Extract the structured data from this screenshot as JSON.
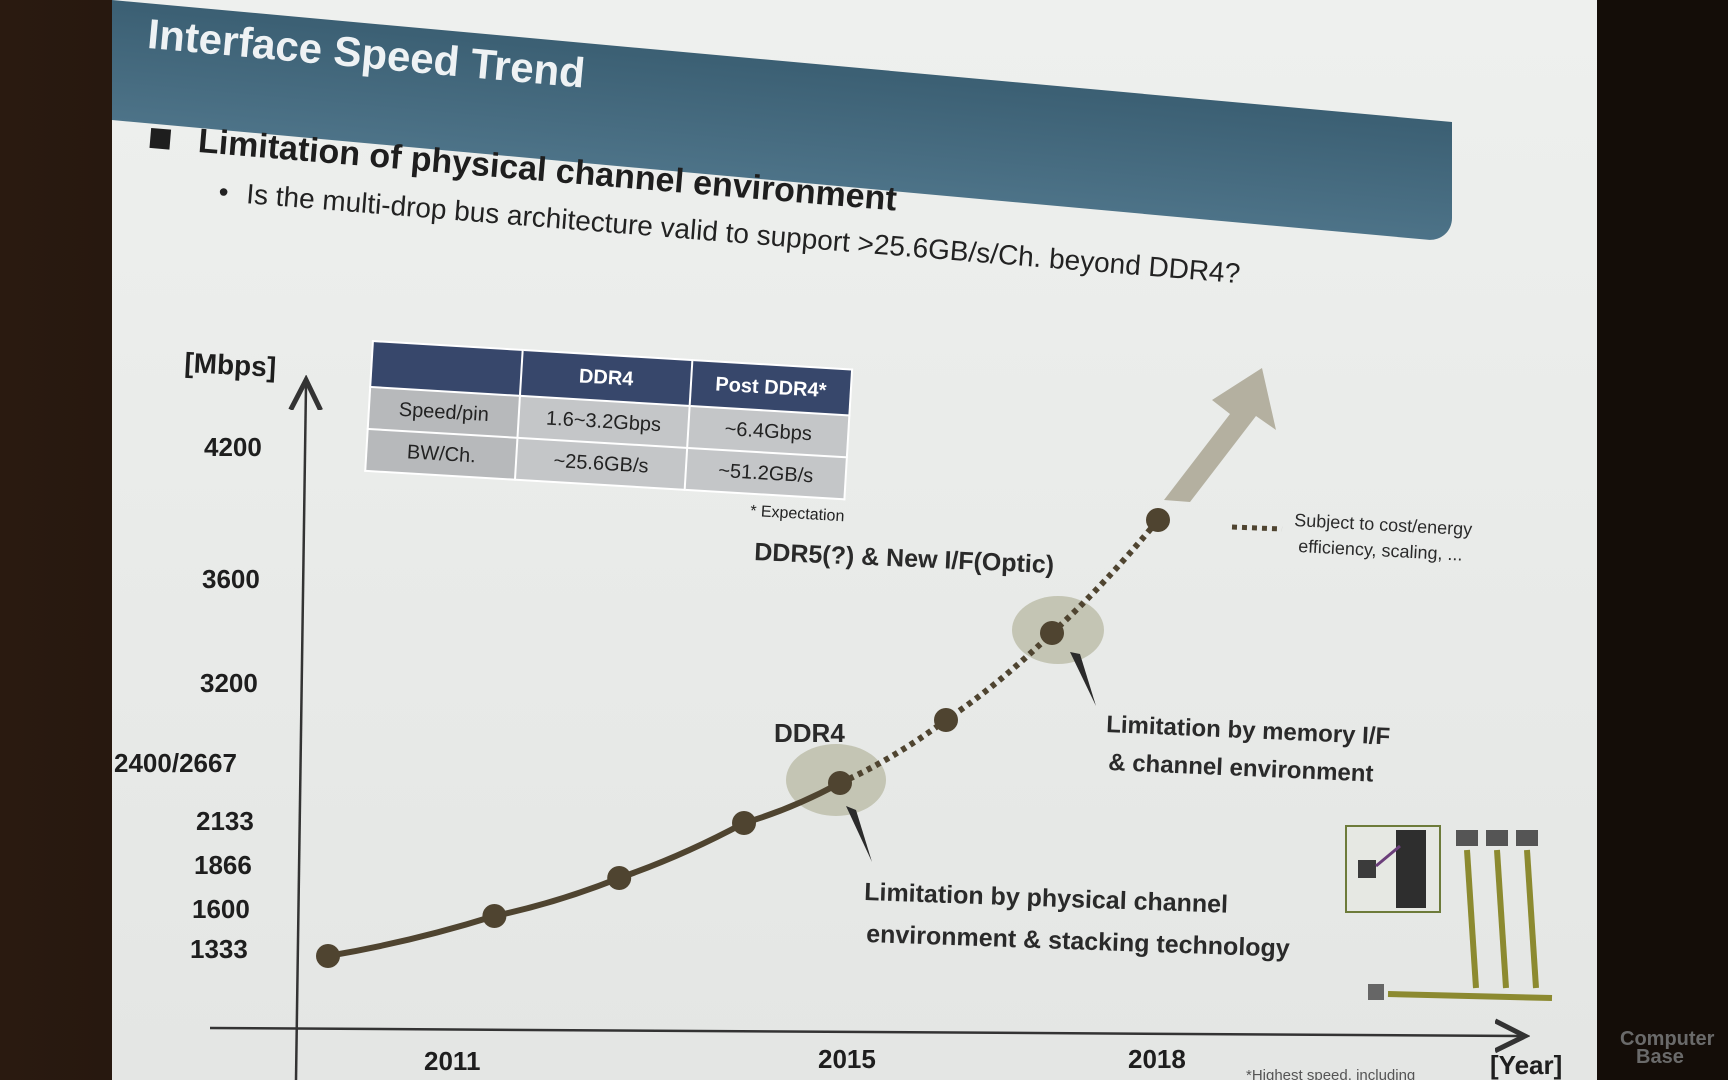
{
  "slide": {
    "title": "Interface Speed Trend",
    "bullet_heading": "Limitation of physical channel environment",
    "sub_bullet": "Is the multi-drop bus architecture valid to support >25.6GB/s/Ch. beyond DDR4?"
  },
  "spec_table": {
    "headers": [
      "",
      "DDR4",
      "Post DDR4*"
    ],
    "rows": [
      [
        "Speed/pin",
        "1.6~3.2Gbps",
        "~6.4Gbps"
      ],
      [
        "BW/Ch.",
        "~25.6GB/s",
        "~51.2GB/s"
      ]
    ],
    "footnote": "* Expectation"
  },
  "chart_data": {
    "type": "line",
    "xlabel": "[Year]",
    "ylabel": "[Mbps]",
    "x_tick_labels": [
      "2011",
      "2015",
      "2018"
    ],
    "y_tick_labels": [
      "4200",
      "3600",
      "3200",
      "2400/2667",
      "2133",
      "1866",
      "1600",
      "1333"
    ],
    "series": [
      {
        "style": "solid",
        "points": [
          [
            2010,
            1333
          ],
          [
            2011.4,
            1600
          ],
          [
            2012.7,
            1866
          ],
          [
            2014,
            2133
          ],
          [
            2015,
            2400
          ]
        ]
      },
      {
        "style": "dotted",
        "points": [
          [
            2015,
            2400
          ],
          [
            2016,
            2667
          ],
          [
            2017,
            3200
          ],
          [
            2018,
            4200
          ]
        ]
      }
    ],
    "annotations": {
      "ddr4": "DDR4",
      "ddr5": "DDR5(?) & New I/F(Optic)",
      "mem_if_line1": "Limitation by memory I/F",
      "mem_if_line2": "& channel environment",
      "phys_line1": "Limitation by physical channel",
      "phys_line2": "environment & stacking technology",
      "legend_line1": "Subject to cost/energy",
      "legend_line2": "efficiency, scaling, ..."
    },
    "footnote_partial": "*Highest speed, including"
  },
  "watermark": {
    "line1": "Computer",
    "line2": "Base"
  },
  "colors": {
    "title_bar": "#4a6e82",
    "table_header": "#37476b",
    "curve": "#4f4430",
    "highlight": "#bdbeaa",
    "arrow": "#b4b0a0"
  }
}
